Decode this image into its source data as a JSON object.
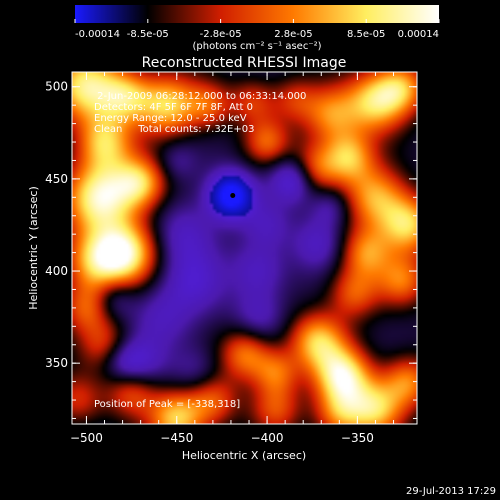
{
  "chart_data": {
    "type": "heatmap",
    "title": "Reconstructed RHESSI Image",
    "xlabel": "Heliocentric X (arcsec)",
    "ylabel": "Heliocentric Y (arcsec)",
    "xlim": [
      -508,
      -317
    ],
    "ylim": [
      317,
      508
    ],
    "x_ticks": [
      -500,
      -450,
      -400,
      -350
    ],
    "y_ticks": [
      350,
      400,
      450,
      500
    ],
    "colorbar": {
      "ticks": [
        "-0.00014",
        "-8.5e-05",
        "-2.8e-05",
        "2.8e-05",
        "8.5e-05",
        "0.00014"
      ],
      "unit_label": "(photons cm⁻² s⁻¹ asec⁻²)",
      "range": [
        -0.00014,
        0.00014
      ],
      "colors": [
        "#1a1aff",
        "#000000",
        "#d01e00",
        "#ff7a00",
        "#ffee60",
        "#ffffff"
      ]
    },
    "annotations": [
      " 2-Jun-2009 06:28:12.000 to 06:33:14.000",
      "Detectors: 4F 5F 6F 7F 8F, Att 0",
      "Energy Range: 12.0 - 25.0 keV",
      "Clean     Total counts: 7.32E+03"
    ],
    "peak_label": "Position of Peak = [-338,318]",
    "marker": {
      "x": -419,
      "y": 441
    },
    "features": [
      {
        "x": -500,
        "y": 500,
        "v": 0.9,
        "s": 14
      },
      {
        "x": -478,
        "y": 495,
        "v": 0.6,
        "s": 10
      },
      {
        "x": -455,
        "y": 490,
        "v": 0.8,
        "s": 12
      },
      {
        "x": -432,
        "y": 490,
        "v": 0.45,
        "s": 9
      },
      {
        "x": -408,
        "y": 492,
        "v": 0.4,
        "s": 9
      },
      {
        "x": -385,
        "y": 493,
        "v": 0.35,
        "s": 9
      },
      {
        "x": -365,
        "y": 485,
        "v": 0.6,
        "s": 11
      },
      {
        "x": -340,
        "y": 492,
        "v": 0.8,
        "s": 12
      },
      {
        "x": -325,
        "y": 500,
        "v": 0.6,
        "s": 10
      },
      {
        "x": -490,
        "y": 470,
        "v": 0.7,
        "s": 11
      },
      {
        "x": -492,
        "y": 440,
        "v": 1.0,
        "s": 14
      },
      {
        "x": -470,
        "y": 448,
        "v": 0.7,
        "s": 10
      },
      {
        "x": -495,
        "y": 405,
        "v": 0.7,
        "s": 12
      },
      {
        "x": -478,
        "y": 410,
        "v": 0.9,
        "s": 12
      },
      {
        "x": -500,
        "y": 380,
        "v": 0.5,
        "s": 10
      },
      {
        "x": -490,
        "y": 360,
        "v": 0.4,
        "s": 10
      },
      {
        "x": -475,
        "y": 335,
        "v": 0.5,
        "s": 10
      },
      {
        "x": -505,
        "y": 330,
        "v": 0.4,
        "s": 10
      },
      {
        "x": -450,
        "y": 320,
        "v": 0.8,
        "s": 11
      },
      {
        "x": -430,
        "y": 330,
        "v": 0.5,
        "s": 10
      },
      {
        "x": -395,
        "y": 325,
        "v": 0.45,
        "s": 10
      },
      {
        "x": -400,
        "y": 470,
        "v": 0.5,
        "s": 9
      },
      {
        "x": -375,
        "y": 455,
        "v": 0.6,
        "s": 10
      },
      {
        "x": -355,
        "y": 462,
        "v": 0.7,
        "s": 10
      },
      {
        "x": -340,
        "y": 440,
        "v": 0.7,
        "s": 12
      },
      {
        "x": -322,
        "y": 425,
        "v": 0.8,
        "s": 11
      },
      {
        "x": -345,
        "y": 410,
        "v": 0.6,
        "s": 10
      },
      {
        "x": -325,
        "y": 395,
        "v": 0.55,
        "s": 10
      },
      {
        "x": -352,
        "y": 388,
        "v": 0.5,
        "s": 10
      },
      {
        "x": -372,
        "y": 362,
        "v": 0.75,
        "s": 11
      },
      {
        "x": -358,
        "y": 343,
        "v": 0.95,
        "s": 11
      },
      {
        "x": -340,
        "y": 325,
        "v": 0.75,
        "s": 11
      },
      {
        "x": -322,
        "y": 340,
        "v": 0.6,
        "s": 10
      },
      {
        "x": -360,
        "y": 322,
        "v": 0.55,
        "s": 10
      },
      {
        "x": -412,
        "y": 355,
        "v": 0.6,
        "s": 10
      },
      {
        "x": -395,
        "y": 345,
        "v": 0.5,
        "s": 9
      },
      {
        "x": -420,
        "y": 441,
        "v": -1.0,
        "s": 9
      },
      {
        "x": -385,
        "y": 450,
        "v": -0.65,
        "s": 9
      },
      {
        "x": -372,
        "y": 415,
        "v": -0.35,
        "s": 10
      },
      {
        "x": -445,
        "y": 420,
        "v": -0.35,
        "s": 12
      },
      {
        "x": -440,
        "y": 395,
        "v": -0.35,
        "s": 12
      },
      {
        "x": -458,
        "y": 375,
        "v": -0.3,
        "s": 12
      },
      {
        "x": -485,
        "y": 385,
        "v": -0.3,
        "s": 8
      },
      {
        "x": -405,
        "y": 400,
        "v": -0.35,
        "s": 11
      },
      {
        "x": -470,
        "y": 350,
        "v": -0.35,
        "s": 10
      },
      {
        "x": -405,
        "y": 375,
        "v": -0.3,
        "s": 10
      },
      {
        "x": -440,
        "y": 345,
        "v": -0.25,
        "s": 10
      },
      {
        "x": -400,
        "y": 425,
        "v": -0.25,
        "s": 9
      },
      {
        "x": -480,
        "y": 350,
        "v": -0.3,
        "s": 8
      },
      {
        "x": -450,
        "y": 460,
        "v": -0.2,
        "s": 8
      },
      {
        "x": -365,
        "y": 435,
        "v": -0.3,
        "s": 8
      }
    ]
  },
  "footer": {
    "date": "29-Jul-2013 17:29"
  }
}
